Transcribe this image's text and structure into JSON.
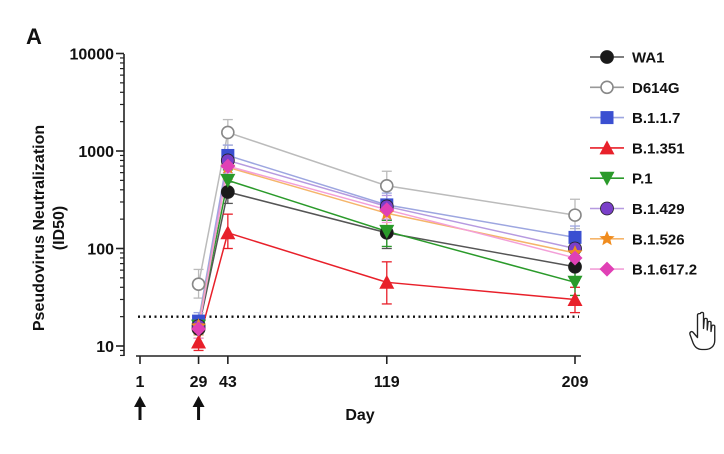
{
  "chart_data": {
    "type": "line",
    "panel_label": "A",
    "xlabel": "Day",
    "ylabel_line1": "Pseudovirus Neutralization",
    "ylabel_line2": "(ID50)",
    "y_scale": "log",
    "ylim": [
      8,
      10000
    ],
    "xlim": [
      1,
      209
    ],
    "x_ticks": [
      1,
      29,
      43,
      119,
      209
    ],
    "x_tick_labels": [
      "1",
      "29",
      "43",
      "119",
      "209"
    ],
    "y_ticks": [
      10,
      100,
      1000,
      10000
    ],
    "y_tick_labels": [
      "10",
      "100",
      "1000",
      "10000"
    ],
    "dotted_reference_y": 20,
    "arrow_days": [
      1,
      29
    ],
    "x": [
      29,
      43,
      119,
      209
    ],
    "series": [
      {
        "name": "WA1",
        "color": "#1a1a1a",
        "line_color": "#555555",
        "marker": "circle-filled",
        "values": [
          15,
          380,
          145,
          65
        ],
        "err_low": [
          3,
          90,
          45,
          18
        ],
        "err_high": [
          3,
          100,
          50,
          20
        ]
      },
      {
        "name": "D614G",
        "color": "#888888",
        "line_color": "#bbbbbb",
        "marker": "circle-open",
        "values": [
          43,
          1550,
          440,
          220
        ],
        "err_low": [
          12,
          400,
          130,
          60
        ],
        "err_high": [
          18,
          550,
          180,
          100
        ]
      },
      {
        "name": "B.1.1.7",
        "color": "#3a4fd1",
        "line_color": "#9da6e0",
        "marker": "square",
        "values": [
          18,
          900,
          280,
          130
        ],
        "err_low": [
          4,
          220,
          80,
          35
        ],
        "err_high": [
          4,
          250,
          90,
          40
        ]
      },
      {
        "name": "B.1.351",
        "color": "#e8202a",
        "line_color": "#e8202a",
        "marker": "triangle-up",
        "values": [
          11,
          145,
          45,
          30
        ],
        "err_low": [
          2,
          45,
          18,
          8
        ],
        "err_high": [
          2,
          80,
          28,
          10
        ]
      },
      {
        "name": "P.1",
        "color": "#2a9a2a",
        "line_color": "#2a9a2a",
        "marker": "triangle-down",
        "values": [
          16,
          500,
          150,
          45
        ],
        "err_low": [
          3,
          120,
          45,
          12
        ],
        "err_high": [
          3,
          140,
          45,
          15
        ]
      },
      {
        "name": "B.1.429",
        "color": "#7a3fc9",
        "line_color": "#b69ae0",
        "marker": "circle-filled",
        "values": [
          16,
          800,
          270,
          100
        ],
        "err_low": [
          3,
          200,
          70,
          25
        ],
        "err_high": [
          3,
          220,
          80,
          30
        ]
      },
      {
        "name": "B.1.526",
        "color": "#f08c1e",
        "line_color": "#f5b56a",
        "marker": "star",
        "values": [
          16,
          680,
          230,
          90
        ],
        "err_low": [
          3,
          170,
          60,
          22
        ],
        "err_high": [
          3,
          190,
          70,
          25
        ]
      },
      {
        "name": "B.1.617.2",
        "color": "#e040b5",
        "line_color": "#f39fd8",
        "marker": "diamond",
        "values": [
          15,
          700,
          250,
          80
        ],
        "err_low": [
          3,
          170,
          65,
          20
        ],
        "err_high": [
          3,
          190,
          70,
          25
        ]
      }
    ],
    "legend_position": "right"
  }
}
